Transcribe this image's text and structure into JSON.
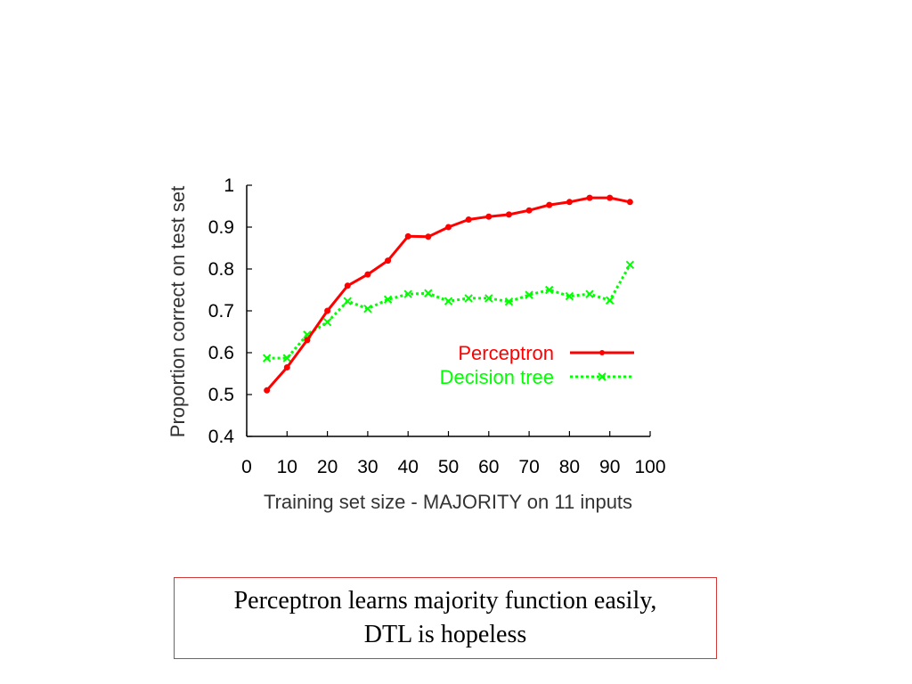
{
  "chart_data": {
    "type": "line",
    "title": "",
    "xlabel": "Training set size - MAJORITY on 11 inputs",
    "ylabel": "Proportion correct on test set",
    "xlim": [
      0,
      100
    ],
    "ylim": [
      0.4,
      1
    ],
    "x_ticks": [
      "0",
      "10",
      "20",
      "30",
      "40",
      "50",
      "60",
      "70",
      "80",
      "90",
      "100"
    ],
    "y_ticks": [
      "0.4",
      "0.5",
      "0.6",
      "0.7",
      "0.8",
      "0.9",
      "1"
    ],
    "grid": false,
    "legend_position": "right",
    "series": [
      {
        "name": "Perceptron",
        "color": "#ff0000",
        "line_style": "solid",
        "marker": "dot",
        "x": [
          5,
          10,
          15,
          20,
          25,
          30,
          35,
          40,
          45,
          50,
          55,
          60,
          65,
          70,
          75,
          80,
          85,
          90,
          95
        ],
        "values": [
          0.51,
          0.565,
          0.63,
          0.7,
          0.76,
          0.787,
          0.82,
          0.878,
          0.877,
          0.9,
          0.918,
          0.925,
          0.93,
          0.94,
          0.953,
          0.96,
          0.97,
          0.97,
          0.96
        ]
      },
      {
        "name": "Decision tree",
        "color": "#00ff00",
        "line_style": "dotted",
        "marker": "x",
        "x": [
          5,
          10,
          15,
          20,
          25,
          30,
          35,
          40,
          45,
          50,
          55,
          60,
          65,
          70,
          75,
          80,
          85,
          90,
          95
        ],
        "values": [
          0.587,
          0.587,
          0.643,
          0.673,
          0.723,
          0.705,
          0.727,
          0.74,
          0.742,
          0.723,
          0.73,
          0.73,
          0.722,
          0.738,
          0.75,
          0.735,
          0.74,
          0.725,
          0.81
        ]
      }
    ]
  },
  "caption": {
    "line1": "Perceptron learns majority function easily,",
    "line2": "DTL is hopeless"
  }
}
